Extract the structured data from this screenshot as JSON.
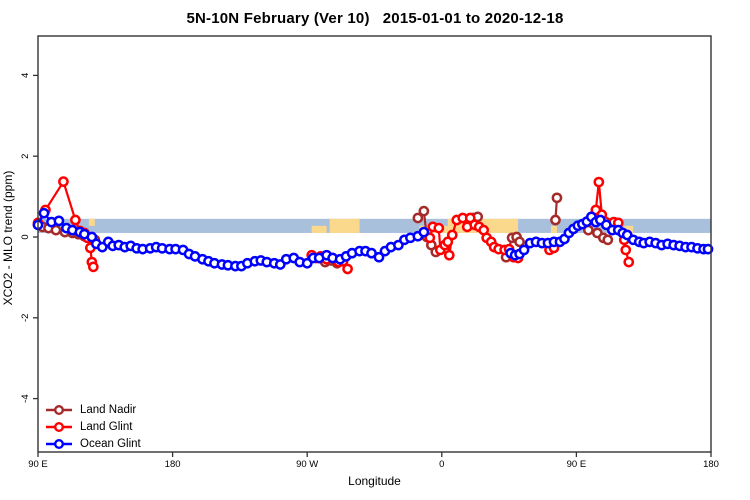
{
  "title": "5N-10N February (Ver 10)   2015-01-01 to 2020-12-18",
  "chart_data": {
    "type": "scatter",
    "title": "5N-10N February (Ver 10)   2015-01-01 to 2020-12-18",
    "xlabel": "Longitude",
    "ylabel": "XCO2 - MLO trend (ppm)",
    "grid": false,
    "x_axis": {
      "unit": "degrees east of 90E (axis wraps 90E → 180 → 90W → 0 → 90E → 180)",
      "range_deg": [
        0,
        450
      ],
      "ticks": [
        {
          "deg": 0,
          "label": "90 E"
        },
        {
          "deg": 90,
          "label": "180"
        },
        {
          "deg": 180,
          "label": "90 W"
        },
        {
          "deg": 270,
          "label": "0"
        },
        {
          "deg": 360,
          "label": "90 E"
        },
        {
          "deg": 450,
          "label": "180"
        }
      ]
    },
    "y_axis": {
      "range": [
        -5.3,
        5.0
      ],
      "ticks": [
        {
          "value": -4,
          "label": "-4"
        },
        {
          "value": -2,
          "label": "-2"
        },
        {
          "value": 0,
          "label": "0"
        },
        {
          "value": 2,
          "label": "2"
        },
        {
          "value": 4,
          "label": "4"
        }
      ]
    },
    "map_band": {
      "description": "horizontal strip map of the 5N-10N latitude band; ocean blue with tan land patches",
      "ocean_color": "#A9C0DD",
      "land_color": "#FAD98C",
      "value_top": 0.45,
      "value_bottom": 0.1,
      "land_patches": [
        {
          "from_deg": 34,
          "to_deg": 38,
          "part": "upper"
        },
        {
          "from_deg": 183,
          "to_deg": 193,
          "part": "lower"
        },
        {
          "from_deg": 195,
          "to_deg": 215,
          "part": "full"
        },
        {
          "from_deg": 255,
          "to_deg": 274,
          "part": "lower"
        },
        {
          "from_deg": 274,
          "to_deg": 321,
          "part": "full"
        },
        {
          "from_deg": 343,
          "to_deg": 347,
          "part": "lower"
        },
        {
          "from_deg": 392,
          "to_deg": 398,
          "part": "lower"
        }
      ]
    },
    "legend": {
      "position": "bottom-left",
      "entries": [
        "Land Nadir",
        "Land Glint",
        "Ocean Glint"
      ]
    },
    "series": [
      {
        "name": "Land Nadir",
        "color": "#A52A2A",
        "segments": [
          [
            [
              0,
              0.3
            ],
            [
              3,
              0.25
            ],
            [
              7,
              0.22
            ],
            [
              12,
              0.17
            ],
            [
              18,
              0.12
            ],
            [
              23,
              0.1
            ],
            [
              27,
              0.07
            ],
            [
              31,
              0.02
            ],
            [
              35,
              -0.02
            ],
            [
              38,
              -0.07
            ]
          ],
          [
            [
              188,
              -0.52
            ],
            [
              192,
              -0.62
            ],
            [
              196,
              -0.58
            ],
            [
              200,
              -0.65
            ]
          ],
          [
            [
              254,
              0.47
            ],
            [
              258,
              0.64
            ],
            [
              260,
              0.0
            ],
            [
              263,
              -0.2
            ],
            [
              266,
              -0.37
            ]
          ],
          [
            [
              291,
              0.47
            ],
            [
              294,
              0.5
            ]
          ],
          [
            [
              313,
              -0.5
            ],
            [
              317,
              -0.02
            ],
            [
              320,
              0.0
            ],
            [
              322,
              -0.12
            ]
          ],
          [
            [
              346,
              0.42
            ],
            [
              347,
              0.97
            ]
          ],
          [
            [
              368,
              0.17
            ],
            [
              374,
              0.1
            ],
            [
              378,
              -0.02
            ],
            [
              381,
              -0.07
            ]
          ]
        ]
      },
      {
        "name": "Land Glint",
        "color": "#FF0000",
        "segments": [
          [
            [
              0,
              0.35
            ],
            [
              5,
              0.67
            ],
            [
              17,
              1.37
            ],
            [
              25,
              0.42
            ],
            [
              28,
              0.15
            ],
            [
              31,
              0.1
            ],
            [
              33,
              -0.02
            ],
            [
              35,
              -0.27
            ],
            [
              36,
              -0.62
            ],
            [
              37,
              -0.74
            ]
          ],
          [
            [
              183,
              -0.45
            ],
            [
              186,
              -0.52
            ],
            [
              189,
              -0.48
            ],
            [
              193,
              -0.55
            ],
            [
              197,
              -0.52
            ],
            [
              201,
              -0.62
            ],
            [
              204,
              -0.6
            ],
            [
              207,
              -0.79
            ]
          ],
          [
            [
              262,
              -0.02
            ],
            [
              264,
              0.25
            ],
            [
              268,
              0.22
            ],
            [
              269,
              -0.32
            ],
            [
              272,
              -0.2
            ],
            [
              274,
              -0.12
            ],
            [
              275,
              -0.45
            ],
            [
              277,
              0.05
            ],
            [
              280,
              0.42
            ],
            [
              284,
              0.47
            ],
            [
              287,
              0.25
            ],
            [
              289,
              0.47
            ],
            [
              292,
              0.3
            ],
            [
              295,
              0.25
            ],
            [
              298,
              0.17
            ],
            [
              300,
              -0.02
            ],
            [
              303,
              -0.12
            ],
            [
              305,
              -0.25
            ],
            [
              308,
              -0.3
            ],
            [
              312,
              -0.32
            ],
            [
              315,
              -0.3
            ],
            [
              318,
              -0.5
            ],
            [
              321,
              -0.52
            ]
          ],
          [
            [
              342,
              -0.32
            ],
            [
              345,
              -0.27
            ]
          ],
          [
            [
              370,
              0.47
            ],
            [
              373,
              0.67
            ],
            [
              375,
              1.36
            ],
            [
              377,
              0.55
            ],
            [
              385,
              0.37
            ],
            [
              388,
              0.35
            ],
            [
              392,
              -0.07
            ],
            [
              393,
              -0.32
            ],
            [
              395,
              -0.62
            ]
          ]
        ]
      },
      {
        "name": "Ocean Glint",
        "color": "#0000FF",
        "segments": [
          [
            [
              0,
              0.3
            ],
            [
              4,
              0.59
            ],
            [
              9,
              0.37
            ],
            [
              14,
              0.4
            ],
            [
              19,
              0.22
            ],
            [
              23,
              0.17
            ],
            [
              28,
              0.12
            ],
            [
              31,
              0.07
            ],
            [
              36,
              0.0
            ],
            [
              39,
              -0.17
            ],
            [
              43,
              -0.25
            ],
            [
              47,
              -0.12
            ],
            [
              50,
              -0.22
            ],
            [
              54,
              -0.2
            ],
            [
              58,
              -0.25
            ],
            [
              62,
              -0.22
            ],
            [
              66,
              -0.28
            ],
            [
              70,
              -0.3
            ],
            [
              75,
              -0.28
            ],
            [
              79,
              -0.25
            ],
            [
              83,
              -0.28
            ],
            [
              88,
              -0.3
            ],
            [
              92,
              -0.3
            ],
            [
              97,
              -0.32
            ],
            [
              101,
              -0.42
            ],
            [
              105,
              -0.48
            ],
            [
              110,
              -0.55
            ],
            [
              114,
              -0.6
            ],
            [
              118,
              -0.65
            ],
            [
              123,
              -0.68
            ],
            [
              127,
              -0.7
            ],
            [
              132,
              -0.72
            ],
            [
              136,
              -0.72
            ],
            [
              140,
              -0.65
            ],
            [
              145,
              -0.6
            ],
            [
              149,
              -0.58
            ],
            [
              153,
              -0.62
            ],
            [
              158,
              -0.65
            ],
            [
              162,
              -0.68
            ],
            [
              166,
              -0.55
            ],
            [
              171,
              -0.52
            ],
            [
              175,
              -0.62
            ],
            [
              180,
              -0.65
            ],
            [
              184,
              -0.52
            ],
            [
              188,
              -0.52
            ],
            [
              193,
              -0.45
            ],
            [
              197,
              -0.52
            ],
            [
              202,
              -0.55
            ],
            [
              206,
              -0.48
            ],
            [
              210,
              -0.4
            ],
            [
              215,
              -0.35
            ],
            [
              219,
              -0.35
            ],
            [
              223,
              -0.4
            ],
            [
              228,
              -0.5
            ],
            [
              232,
              -0.35
            ],
            [
              236,
              -0.25
            ],
            [
              241,
              -0.2
            ],
            [
              245,
              -0.07
            ],
            [
              249,
              -0.02
            ],
            [
              254,
              0.02
            ],
            [
              258,
              0.12
            ]
          ],
          [
            [
              316,
              -0.4
            ],
            [
              319,
              -0.45
            ],
            [
              322,
              -0.42
            ],
            [
              325,
              -0.32
            ],
            [
              329,
              -0.15
            ],
            [
              333,
              -0.12
            ],
            [
              337,
              -0.15
            ],
            [
              341,
              -0.15
            ],
            [
              345,
              -0.12
            ],
            [
              349,
              -0.12
            ],
            [
              352,
              -0.05
            ],
            [
              355,
              0.1
            ],
            [
              358,
              0.2
            ],
            [
              361,
              0.28
            ],
            [
              364,
              0.32
            ],
            [
              367,
              0.38
            ],
            [
              370,
              0.5
            ],
            [
              373,
              0.37
            ],
            [
              376,
              0.42
            ],
            [
              380,
              0.3
            ],
            [
              384,
              0.17
            ],
            [
              388,
              0.17
            ],
            [
              391,
              0.1
            ],
            [
              394,
              0.05
            ],
            [
              398,
              -0.07
            ],
            [
              402,
              -0.12
            ],
            [
              405,
              -0.15
            ],
            [
              409,
              -0.12
            ],
            [
              413,
              -0.15
            ],
            [
              417,
              -0.2
            ],
            [
              421,
              -0.17
            ],
            [
              425,
              -0.2
            ],
            [
              429,
              -0.22
            ],
            [
              433,
              -0.25
            ],
            [
              437,
              -0.25
            ],
            [
              441,
              -0.28
            ],
            [
              445,
              -0.3
            ],
            [
              448,
              -0.3
            ]
          ]
        ]
      }
    ]
  }
}
